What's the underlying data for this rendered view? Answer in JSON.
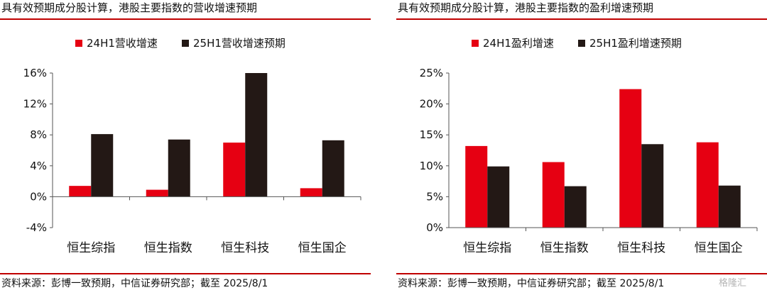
{
  "panels": [
    {
      "title": "具有效预期成分股计算，港股主要指数的营收增速预期",
      "source": "资料来源：彭博一致预期，中信证券研究部；截至 2025/8/1",
      "chart_data": {
        "type": "bar",
        "categories": [
          "恒生综指",
          "恒生指数",
          "恒生科技",
          "恒生国企"
        ],
        "series": [
          {
            "name": "24H1营收增速",
            "values": [
              1.4,
              0.9,
              7.0,
              1.1
            ],
            "color": "#e60012"
          },
          {
            "name": "25H1营收增速预期",
            "values": [
              8.1,
              7.4,
              16.0,
              7.3
            ],
            "color": "#231815"
          }
        ],
        "ylim": [
          -4,
          16
        ],
        "yticks": [
          -4,
          0,
          4,
          8,
          12,
          16
        ],
        "yticklabels": [
          "-4%",
          "0%",
          "4%",
          "8%",
          "12%",
          "16%"
        ],
        "grid": false,
        "legend": "top-center",
        "title": "",
        "xlabel": "",
        "ylabel": ""
      }
    },
    {
      "title": "具有效预期成分股计算，港股主要指数的盈利增速预期",
      "source": "资料来源：彭博一致预期，中信证券研究部；截至 2025/8/1",
      "chart_data": {
        "type": "bar",
        "categories": [
          "恒生综指",
          "恒生指数",
          "恒生科技",
          "恒生国企"
        ],
        "series": [
          {
            "name": "24H1盈利增速",
            "values": [
              13.2,
              10.6,
              22.4,
              13.8
            ],
            "color": "#e60012"
          },
          {
            "name": "25H1盈利增速预期",
            "values": [
              9.9,
              6.7,
              13.5,
              6.8
            ],
            "color": "#231815"
          }
        ],
        "ylim": [
          0,
          25
        ],
        "yticks": [
          0,
          5,
          10,
          15,
          20,
          25
        ],
        "yticklabels": [
          "0%",
          "5%",
          "10%",
          "15%",
          "20%",
          "25%"
        ],
        "grid": false,
        "legend": "top-center",
        "title": "",
        "xlabel": "",
        "ylabel": ""
      }
    }
  ],
  "watermark": "格隆汇"
}
